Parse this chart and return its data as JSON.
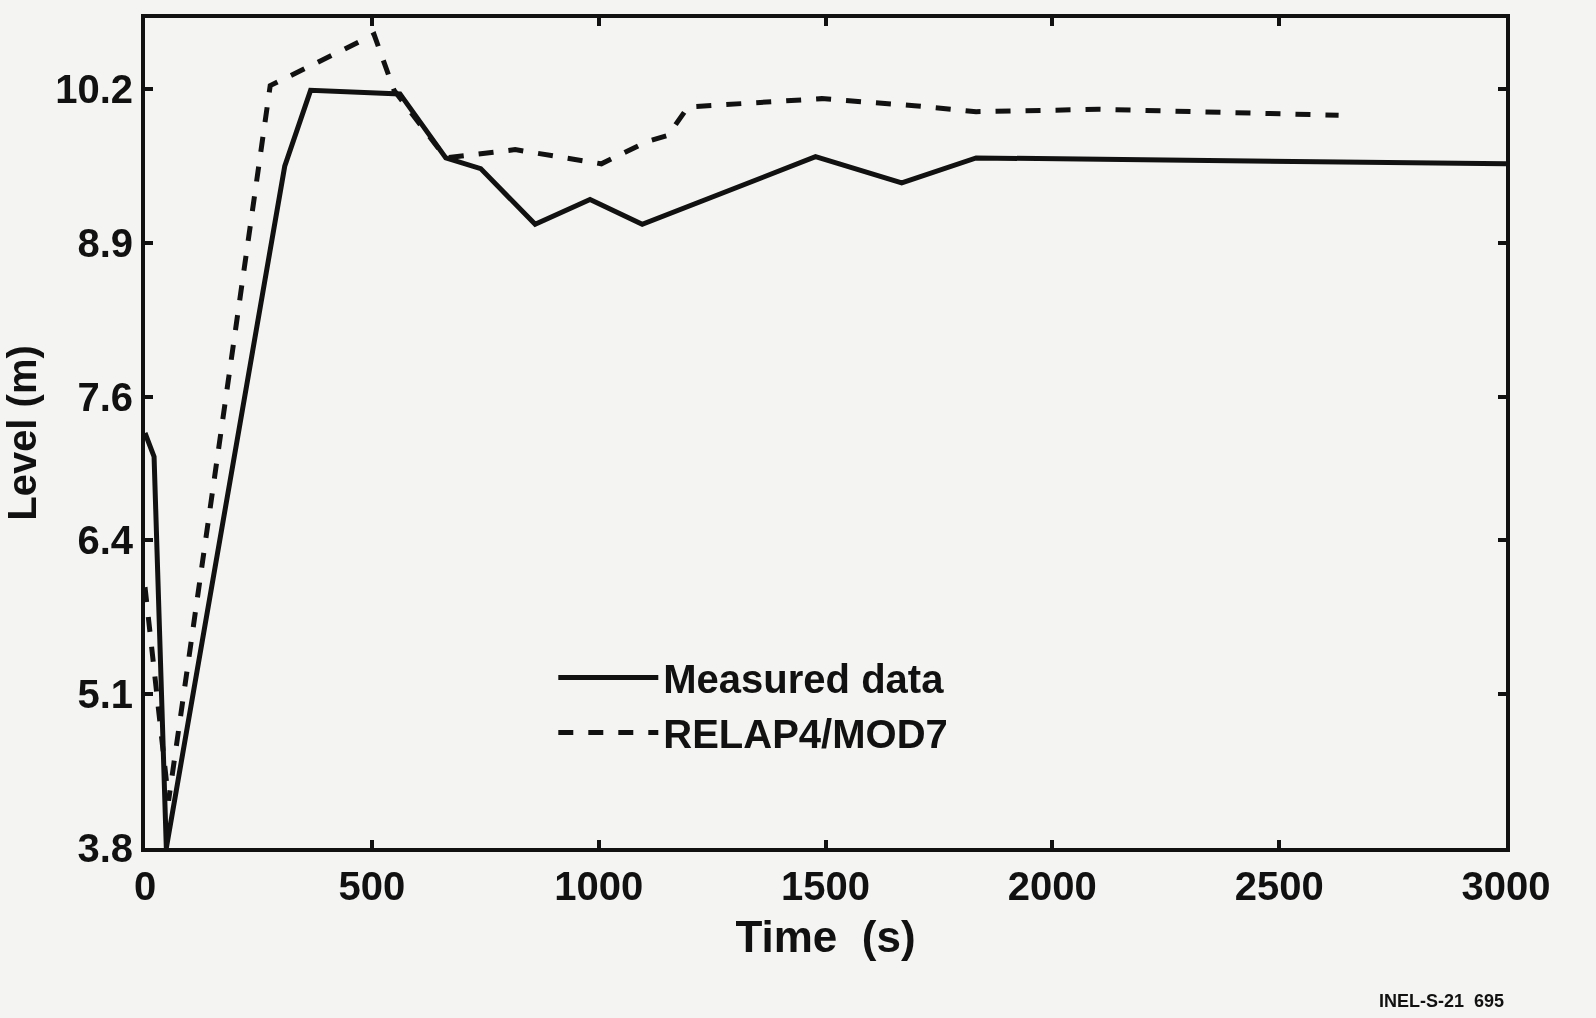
{
  "chart_data": {
    "type": "line",
    "xlabel": "Time  (s)",
    "ylabel": "Level (m)",
    "xlim": [
      0,
      3000
    ],
    "xticks": [
      0,
      500,
      1000,
      1500,
      2000,
      2500,
      3000
    ],
    "ylim": [
      3.8,
      10.8
    ],
    "yticks": [
      3.8,
      5.1,
      6.4,
      7.6,
      8.9,
      10.2
    ],
    "grid": false,
    "legend": "bottom",
    "marker": "none",
    "series": [
      {
        "name": "Measured data",
        "color": "#111111",
        "line_style": "solid",
        "x": [
          0,
          20,
          47,
          308,
          365,
          562,
          663,
          740,
          860,
          981,
          1096,
          1478,
          1668,
          1832,
          3000
        ],
        "values": [
          7.3,
          7.1,
          3.8,
          9.55,
          10.19,
          10.16,
          9.62,
          9.53,
          9.06,
          9.27,
          9.06,
          9.63,
          9.41,
          9.62,
          9.57
        ]
      },
      {
        "name": "RELAP4/MOD7",
        "color": "#111111",
        "line_style": "dashed",
        "x": [
          0,
          52,
          276,
          505,
          549,
          663,
          816,
          1006,
          1108,
          1153,
          1197,
          1492,
          1696,
          1832,
          2102,
          2631
        ],
        "values": [
          6.0,
          4.2,
          10.23,
          10.66,
          10.19,
          9.62,
          9.69,
          9.57,
          9.76,
          9.81,
          10.05,
          10.12,
          10.06,
          10.01,
          10.03,
          9.98
        ]
      }
    ],
    "annotations": [
      "INEL-S-21  695"
    ]
  }
}
